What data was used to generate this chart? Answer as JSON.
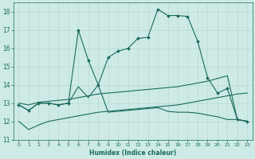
{
  "xlabel": "Humidex (Indice chaleur)",
  "xlim": [
    -0.5,
    23.5
  ],
  "ylim": [
    11,
    18.5
  ],
  "yticks": [
    11,
    12,
    13,
    14,
    15,
    16,
    17,
    18
  ],
  "xticks": [
    0,
    1,
    2,
    3,
    4,
    5,
    6,
    7,
    8,
    9,
    10,
    11,
    12,
    13,
    14,
    15,
    16,
    17,
    18,
    19,
    20,
    21,
    22,
    23
  ],
  "bg_color": "#cdeae6",
  "grid_color": "#b8d8d4",
  "line_color": "#1a6b5a",
  "line1_x": [
    0,
    1,
    2,
    3,
    4,
    5,
    6,
    7,
    8,
    9,
    10,
    11,
    12,
    13,
    14,
    15,
    16,
    17,
    18,
    19,
    20,
    21,
    22,
    23
  ],
  "line1_y": [
    12.9,
    12.6,
    13.0,
    13.0,
    12.9,
    13.0,
    17.0,
    15.35,
    14.0,
    15.5,
    15.85,
    16.0,
    16.55,
    16.6,
    18.15,
    17.8,
    17.8,
    17.75,
    16.4,
    14.4,
    13.55,
    13.8,
    12.1,
    12.0
  ],
  "line2_x": [
    0,
    1,
    2,
    3,
    4,
    5,
    6,
    7,
    8,
    9,
    10,
    11,
    12,
    13,
    14,
    15,
    16,
    17,
    18,
    19,
    20,
    21,
    22,
    23
  ],
  "line2_y": [
    12.9,
    12.6,
    13.0,
    13.0,
    12.9,
    13.0,
    13.9,
    13.3,
    14.0,
    12.5,
    12.55,
    12.6,
    12.65,
    12.7,
    12.75,
    12.55,
    12.5,
    12.5,
    12.45,
    12.35,
    12.25,
    12.1,
    12.1,
    12.0
  ],
  "line3_x": [
    0,
    1,
    2,
    3,
    4,
    5,
    6,
    7,
    8,
    9,
    10,
    11,
    12,
    13,
    14,
    15,
    16,
    17,
    18,
    19,
    20,
    21,
    22,
    23
  ],
  "line3_y": [
    13.0,
    12.9,
    13.05,
    13.1,
    13.15,
    13.2,
    13.3,
    13.4,
    13.5,
    13.55,
    13.6,
    13.65,
    13.7,
    13.75,
    13.8,
    13.85,
    13.9,
    14.0,
    14.1,
    14.2,
    14.35,
    14.5,
    12.1,
    12.0
  ],
  "line4_x": [
    0,
    1,
    2,
    3,
    4,
    5,
    6,
    7,
    8,
    9,
    10,
    11,
    12,
    13,
    14,
    15,
    16,
    17,
    18,
    19,
    20,
    21,
    22,
    23
  ],
  "line4_y": [
    12.0,
    11.55,
    11.8,
    12.0,
    12.1,
    12.2,
    12.3,
    12.4,
    12.5,
    12.55,
    12.6,
    12.65,
    12.7,
    12.75,
    12.8,
    12.85,
    12.9,
    13.0,
    13.1,
    13.2,
    13.3,
    13.4,
    13.5,
    13.55
  ]
}
